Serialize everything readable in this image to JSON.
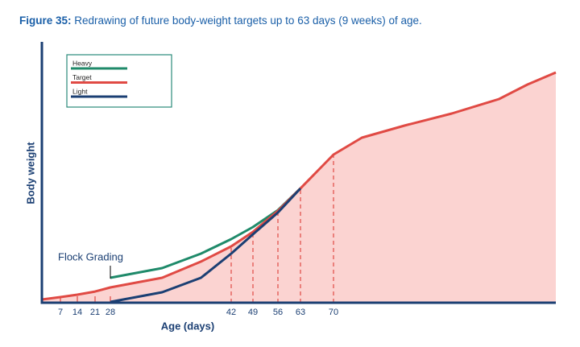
{
  "chart_data": {
    "type": "line",
    "figure_label": "Figure 35:",
    "title": "Redrawing of future body-weight targets up to 63 days (9 weeks) of age.",
    "xlabel": "Age (days)",
    "ylabel": "Body weight",
    "annotation": "Flock Grading",
    "annotation_x": 28,
    "xlim": [
      0,
      117
    ],
    "xticks": [
      7,
      14,
      21,
      28,
      42,
      49,
      56,
      63,
      70
    ],
    "ylim": [
      0,
      100
    ],
    "legend": "upper left",
    "series": [
      {
        "name": "Heavy",
        "color": "#1f8a6a",
        "x": [
          28,
          34,
          38.5,
          42,
          49,
          56,
          63
        ],
        "values": [
          10,
          14,
          20,
          26,
          31,
          38,
          47
        ]
      },
      {
        "name": "Target",
        "color": "#e04a44",
        "fill": "#fbd3d1",
        "x": [
          0,
          7,
          14,
          21,
          28,
          34,
          38.5,
          42,
          49,
          56,
          63,
          67,
          70,
          76,
          85,
          95,
          105,
          111,
          117
        ],
        "values": [
          1,
          2,
          3,
          4.3,
          6,
          10,
          16.7,
          23,
          29,
          37.7,
          47,
          55,
          61,
          68,
          73,
          78,
          84,
          90,
          95
        ]
      },
      {
        "name": "Light",
        "color": "#1b3f73",
        "x": [
          28,
          34,
          38.5,
          42,
          49,
          56,
          63
        ],
        "values": [
          0,
          4,
          10,
          20,
          28,
          37,
          47
        ]
      }
    ]
  }
}
